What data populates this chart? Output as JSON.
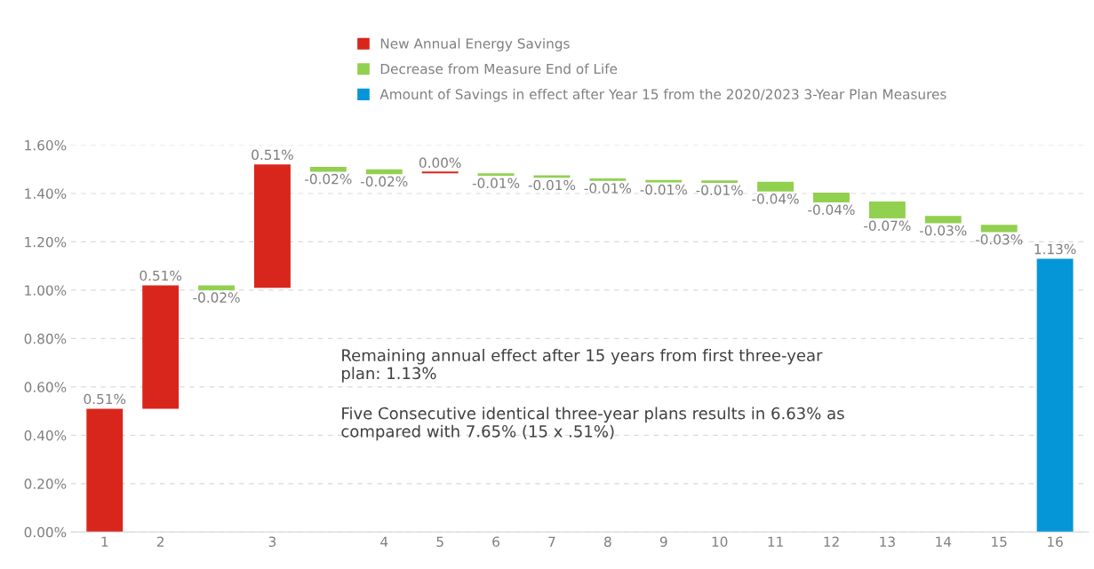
{
  "chart_data": {
    "type": "bar",
    "categories": [
      "1",
      "2",
      null,
      "3",
      null,
      "4",
      "5",
      "6",
      "7",
      "8",
      "9",
      "10",
      "11",
      "12",
      "13",
      "14",
      "15",
      "16"
    ],
    "series": [
      {
        "name": "New Annual Energy Savings",
        "color": "#d9261c",
        "values": [
          0.51,
          0.51,
          null,
          0.51,
          null,
          null,
          0.0,
          null,
          null,
          null,
          null,
          null,
          null,
          null,
          null,
          null,
          null,
          null
        ],
        "value_labels": [
          "0.51%",
          "0.51%",
          null,
          "0.51%",
          null,
          null,
          "0.00%",
          null,
          null,
          null,
          null,
          null,
          null,
          null,
          null,
          null,
          null,
          null
        ],
        "base": [
          0,
          0.51,
          null,
          1.01,
          null,
          null,
          1.487,
          null,
          null,
          null,
          null,
          null,
          null,
          null,
          null,
          null,
          null,
          null
        ]
      },
      {
        "name": "Decrease from Measure End of Life",
        "color": "#92d050",
        "values": [
          null,
          null,
          -0.02,
          null,
          -0.02,
          -0.02,
          null,
          -0.01,
          -0.01,
          -0.01,
          -0.01,
          -0.01,
          -0.04,
          -0.04,
          -0.07,
          -0.03,
          -0.03,
          null
        ],
        "value_labels": [
          null,
          null,
          "-0.02%",
          null,
          "-0.02%",
          "-0.02%",
          null,
          "-0.01%",
          "-0.01%",
          "-0.01%",
          "-0.01%",
          "-0.01%",
          "-0.04%",
          "-0.04%",
          "-0.07%",
          "-0.03%",
          "-0.03%",
          null
        ],
        "base": [
          null,
          null,
          1.02,
          null,
          1.51,
          1.5,
          null,
          1.483,
          1.475,
          1.462,
          1.456,
          1.454,
          1.448,
          1.403,
          1.367,
          1.307,
          1.27,
          null
        ]
      },
      {
        "name": "Amount of Savings in effect after Year 15 from the 2020/2023 3-Year Plan Measures",
        "color": "#0596d8",
        "values": [
          null,
          null,
          null,
          null,
          null,
          null,
          null,
          null,
          null,
          null,
          null,
          null,
          null,
          null,
          null,
          null,
          null,
          1.13
        ],
        "value_labels": [
          null,
          null,
          null,
          null,
          null,
          null,
          null,
          null,
          null,
          null,
          null,
          null,
          null,
          null,
          null,
          null,
          null,
          "1.13%"
        ],
        "base": [
          null,
          null,
          null,
          null,
          null,
          null,
          null,
          null,
          null,
          null,
          null,
          null,
          null,
          null,
          null,
          null,
          null,
          0
        ]
      }
    ],
    "ylim": [
      0,
      1.6
    ],
    "yticks": [
      {
        "value": 0,
        "label": "0.00%"
      },
      {
        "value": 0.2,
        "label": "0.20%"
      },
      {
        "value": 0.4,
        "label": "0.40%"
      },
      {
        "value": 0.6,
        "label": "0.60%"
      },
      {
        "value": 0.8,
        "label": "0.80%"
      },
      {
        "value": 1.0,
        "label": "1.00%"
      },
      {
        "value": 1.2,
        "label": "1.20%"
      },
      {
        "value": 1.4,
        "label": "1.40%"
      },
      {
        "value": 1.6,
        "label": "1.60%"
      }
    ],
    "grid": "y",
    "legend": "top",
    "annotations": [
      "Remaining annual effect after 15 years from first three-year\nplan: 1.13%",
      "Five Consecutive identical three-year plans results in 6.63% as\ncompared with 7.65% (15 x .51%)"
    ]
  }
}
